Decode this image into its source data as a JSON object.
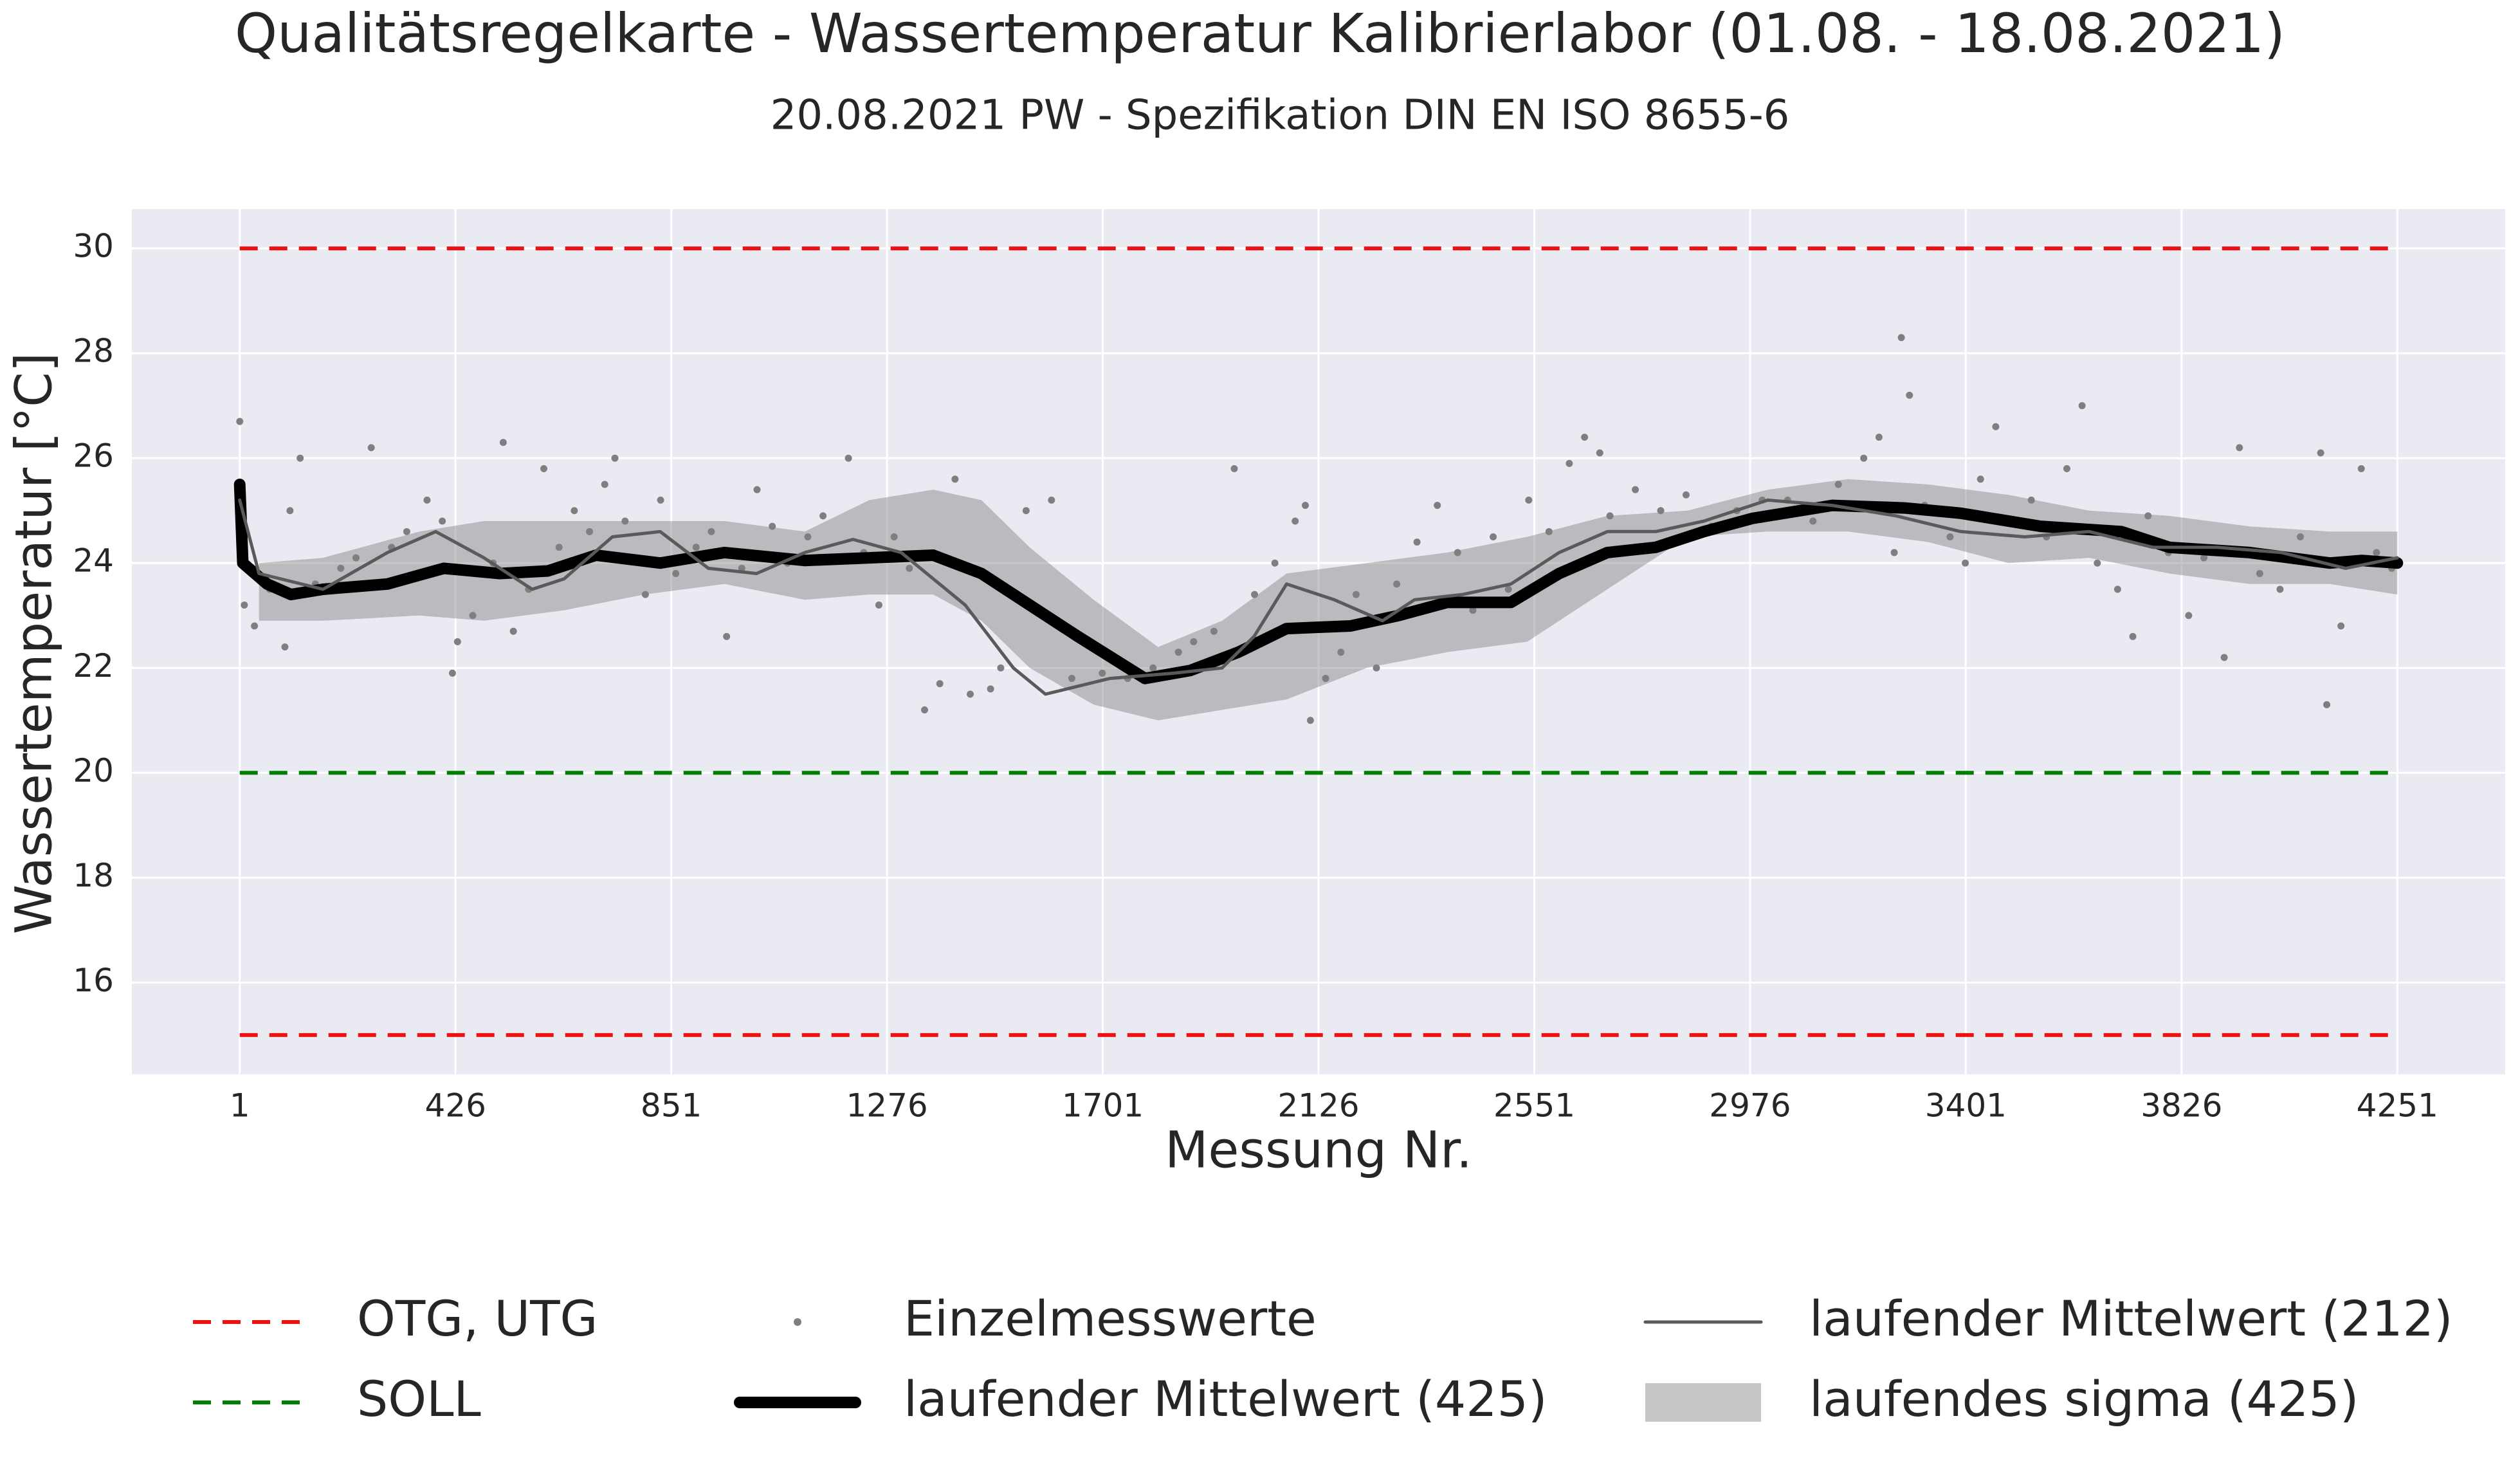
{
  "chart_data": {
    "type": "line",
    "title": "Qualitätsregelkarte - Wassertemperatur Kalibrierlabor (01.08. - 18.08.2021)",
    "subtitle": "20.08.2021 PW - Spezifikation DIN EN ISO 8655-6",
    "xlabel": "Messung Nr.",
    "ylabel": "Wassertemperatur [°C]",
    "xlim": [
      -211.5,
      4463.5
    ],
    "ylim": [
      14.25,
      30.75
    ],
    "xticks": [
      1,
      426,
      851,
      1276,
      1701,
      2126,
      2551,
      2976,
      3401,
      3826,
      4251
    ],
    "yticks": [
      16,
      18,
      20,
      22,
      24,
      26,
      28,
      30
    ],
    "grid": true,
    "legend": "bottom",
    "series": [
      {
        "name": "OTG, UTG",
        "type": "hline",
        "color": "#ee1111",
        "values": [
          30,
          15
        ]
      },
      {
        "name": "SOLL",
        "type": "hline",
        "color": "#008000",
        "values": [
          20
        ]
      },
      {
        "name": "Einzelmesswerte",
        "type": "scatter",
        "color": "#7f7f7f",
        "x": [
          1,
          5,
          10,
          30,
          60,
          90,
          100,
          120,
          150,
          200,
          230,
          260,
          300,
          330,
          370,
          400,
          420,
          430,
          460,
          500,
          520,
          540,
          570,
          600,
          630,
          660,
          690,
          720,
          740,
          760,
          800,
          830,
          860,
          900,
          930,
          960,
          990,
          1020,
          1050,
          1080,
          1120,
          1150,
          1200,
          1230,
          1260,
          1290,
          1320,
          1350,
          1380,
          1410,
          1440,
          1480,
          1500,
          1550,
          1600,
          1640,
          1700,
          1750,
          1800,
          1850,
          1880,
          1920,
          1960,
          2000,
          2040,
          2080,
          2100,
          2110,
          2140,
          2170,
          2200,
          2240,
          2280,
          2320,
          2360,
          2400,
          2430,
          2470,
          2500,
          2540,
          2580,
          2620,
          2650,
          2680,
          2700,
          2750,
          2800,
          2850,
          2900,
          2950,
          3000,
          3050,
          3100,
          3150,
          3200,
          3230,
          3260,
          3274,
          3290,
          3320,
          3370,
          3400,
          3430,
          3460,
          3490,
          3530,
          3560,
          3600,
          3630,
          3660,
          3700,
          3730,
          3760,
          3800,
          3840,
          3870,
          3910,
          3940,
          3980,
          4020,
          4060,
          4100,
          4112,
          4140,
          4180,
          4210,
          4240
        ],
        "values": [
          26.7,
          24.5,
          23.2,
          22.8,
          23.5,
          22.4,
          25.0,
          26.0,
          23.6,
          23.9,
          24.1,
          26.2,
          24.3,
          24.6,
          25.2,
          24.8,
          21.9,
          22.5,
          23.0,
          24.0,
          26.3,
          22.7,
          23.5,
          25.8,
          24.3,
          25.0,
          24.6,
          25.5,
          26.0,
          24.8,
          23.4,
          25.2,
          23.8,
          24.3,
          24.6,
          22.6,
          23.9,
          25.4,
          24.7,
          24.0,
          24.5,
          24.9,
          26.0,
          24.2,
          23.2,
          24.5,
          23.9,
          21.2,
          21.7,
          25.6,
          21.5,
          21.6,
          22.0,
          25.0,
          25.2,
          21.8,
          21.9,
          21.8,
          22.0,
          22.3,
          22.5,
          22.7,
          25.8,
          23.4,
          24.0,
          24.8,
          25.1,
          21.0,
          21.8,
          22.3,
          23.4,
          22.0,
          23.6,
          24.4,
          25.1,
          24.2,
          23.1,
          24.5,
          23.5,
          25.2,
          24.6,
          25.9,
          26.4,
          26.1,
          24.9,
          25.4,
          25.0,
          25.3,
          24.7,
          25.0,
          25.2,
          25.2,
          24.8,
          25.5,
          26.0,
          26.4,
          24.2,
          28.3,
          27.2,
          25.1,
          24.5,
          24.0,
          25.6,
          26.6,
          24.8,
          25.2,
          24.5,
          25.8,
          27.0,
          24.0,
          23.5,
          22.6,
          24.9,
          24.2,
          23.0,
          24.1,
          22.2,
          26.2,
          23.8,
          23.5,
          24.5,
          26.1,
          21.3,
          22.8,
          25.8,
          24.2,
          23.9
        ]
      },
      {
        "name": "laufender Mittelwert (425)",
        "type": "line",
        "color": "#000000",
        "width": 18,
        "x": [
          1,
          7,
          55,
          102,
          165,
          292,
          403,
          513,
          608,
          703,
          829,
          956,
          1114,
          1241,
          1367,
          1462,
          1557,
          1652,
          1784,
          1873,
          1968,
          2063,
          2189,
          2284,
          2379,
          2505,
          2600,
          2695,
          2790,
          2885,
          2980,
          3075,
          3138,
          3280,
          3391,
          3549,
          3707,
          3802,
          3960,
          4118,
          4181,
          4251
        ],
        "values": [
          25.5,
          24.0,
          23.6,
          23.4,
          23.5,
          23.6,
          23.9,
          23.8,
          23.85,
          24.15,
          24.0,
          24.2,
          24.05,
          24.1,
          24.15,
          23.8,
          23.2,
          22.6,
          21.8,
          21.95,
          22.3,
          22.75,
          22.8,
          23.0,
          23.25,
          23.25,
          23.8,
          24.2,
          24.3,
          24.6,
          24.85,
          25.0,
          25.1,
          25.05,
          24.95,
          24.7,
          24.6,
          24.3,
          24.2,
          24.0,
          24.05,
          24.0
        ]
      },
      {
        "name": "laufender Mittelwert (212)",
        "type": "line",
        "color": "#5a5a5a",
        "width": 5,
        "x": [
          1,
          39,
          165,
          292,
          387,
          482,
          577,
          640,
          735,
          829,
          924,
          1019,
          1114,
          1209,
          1304,
          1430,
          1525,
          1588,
          1715,
          1841,
          1936,
          1999,
          2063,
          2157,
          2252,
          2315,
          2410,
          2505,
          2600,
          2695,
          2790,
          2885,
          3011,
          3138,
          3264,
          3391,
          3517,
          3644,
          3770,
          3896,
          4023,
          4149,
          4251
        ],
        "values": [
          25.2,
          23.8,
          23.5,
          24.2,
          24.6,
          24.1,
          23.5,
          23.7,
          24.5,
          24.6,
          23.9,
          23.8,
          24.2,
          24.45,
          24.2,
          23.2,
          22.0,
          21.5,
          21.8,
          21.9,
          22.0,
          22.6,
          23.6,
          23.3,
          22.9,
          23.3,
          23.4,
          23.6,
          24.2,
          24.6,
          24.6,
          24.8,
          25.2,
          25.1,
          24.9,
          24.6,
          24.5,
          24.6,
          24.3,
          24.3,
          24.2,
          23.9,
          24.1
        ]
      },
      {
        "name": "laufendes sigma (425)",
        "type": "band",
        "color": "#808080",
        "alpha": 0.45,
        "x": [
          39,
          165,
          355,
          482,
          640,
          798,
          956,
          1114,
          1241,
          1367,
          1462,
          1557,
          1683,
          1810,
          1936,
          2063,
          2221,
          2379,
          2537,
          2695,
          2853,
          3011,
          3169,
          3327,
          3485,
          3644,
          3802,
          3960,
          4118,
          4251
        ],
        "lower": [
          22.9,
          22.9,
          23.0,
          22.9,
          23.1,
          23.4,
          23.6,
          23.3,
          23.4,
          23.4,
          22.9,
          22.0,
          21.3,
          21.0,
          21.2,
          21.4,
          22.0,
          22.3,
          22.5,
          23.5,
          24.5,
          24.6,
          24.6,
          24.4,
          24.0,
          24.1,
          23.8,
          23.6,
          23.6,
          23.4
        ],
        "upper": [
          24.0,
          24.1,
          24.6,
          24.8,
          24.8,
          24.8,
          24.8,
          24.6,
          25.2,
          25.4,
          25.2,
          24.3,
          23.3,
          22.4,
          22.9,
          23.8,
          24.0,
          24.2,
          24.5,
          24.9,
          25.0,
          25.4,
          25.6,
          25.5,
          25.3,
          25.0,
          24.9,
          24.7,
          24.6,
          24.6
        ]
      }
    ]
  }
}
